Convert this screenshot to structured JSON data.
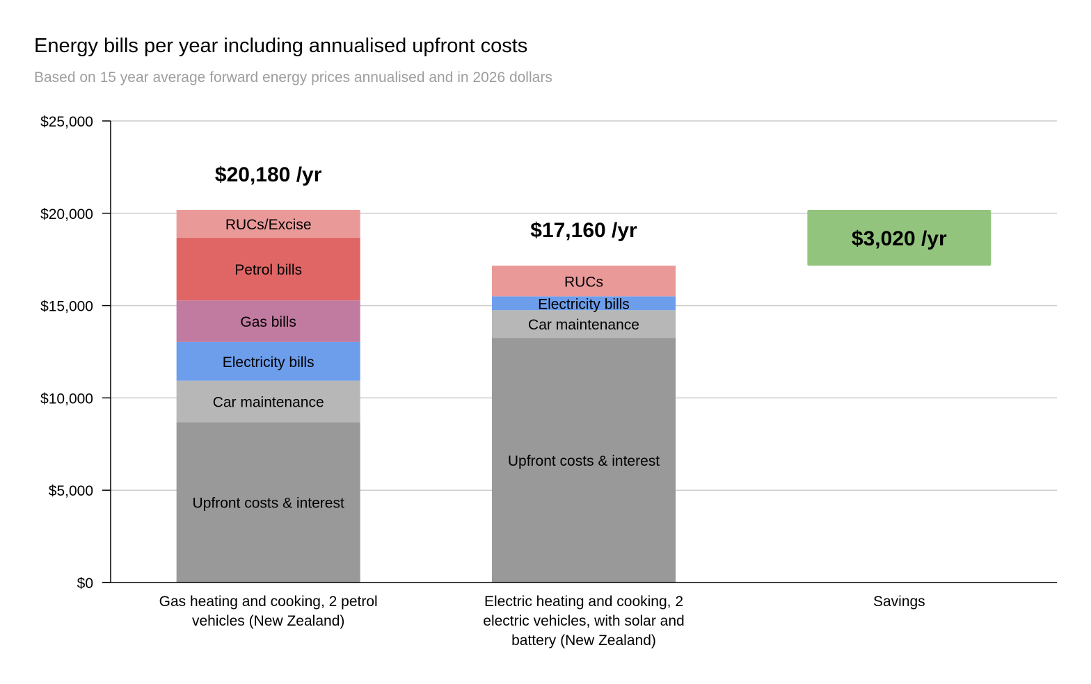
{
  "chart_data": {
    "type": "bar",
    "stacked": true,
    "title": "Energy bills per year including annualised upfront costs",
    "subtitle": "Based on 15 year average forward energy prices annualised and in 2026 dollars",
    "xlabel": "",
    "ylabel": "",
    "ylim": [
      0,
      25000
    ],
    "yticks": [
      0,
      5000,
      10000,
      15000,
      20000,
      25000
    ],
    "ytick_labels": [
      "$0",
      "$5,000",
      "$10,000",
      "$15,000",
      "$20,000",
      "$25,000"
    ],
    "grid": true,
    "legend": "none",
    "categories": [
      {
        "lines": [
          "Gas heating and cooking, 2 petrol",
          "vehicles (New Zealand)"
        ]
      },
      {
        "lines": [
          "Electric heating and cooking, 2",
          "electric vehicles, with solar and",
          "battery (New Zealand)"
        ]
      },
      {
        "lines": [
          "Savings"
        ]
      }
    ],
    "bars": [
      {
        "total_label": "$20,180 /yr",
        "segments": [
          {
            "label": "Upfront costs & interest",
            "value": 8680,
            "color": "#999999"
          },
          {
            "label": "Car maintenance",
            "value": 2250,
            "color": "#b7b7b7"
          },
          {
            "label": "Electricity bills",
            "value": 2100,
            "color": "#6d9eeb"
          },
          {
            "label": "Gas bills",
            "value": 2250,
            "color": "#c27ba0"
          },
          {
            "label": "Petrol bills",
            "value": 3400,
            "color": "#e06666"
          },
          {
            "label": "RUCs/Excise",
            "value": 1500,
            "color": "#ea9999"
          }
        ]
      },
      {
        "total_label": "$17,160 /yr",
        "segments": [
          {
            "label": "Upfront costs & interest",
            "value": 13250,
            "color": "#999999"
          },
          {
            "label": "Car maintenance",
            "value": 1500,
            "color": "#b7b7b7"
          },
          {
            "label": "Electricity bills",
            "value": 750,
            "color": "#6d9eeb"
          },
          {
            "label": "RUCs",
            "value": 1660,
            "color": "#ea9999"
          }
        ]
      },
      {
        "floating": true,
        "range": [
          17160,
          20180
        ],
        "label": "$3,020 /yr",
        "color": "#93c47d"
      }
    ]
  }
}
